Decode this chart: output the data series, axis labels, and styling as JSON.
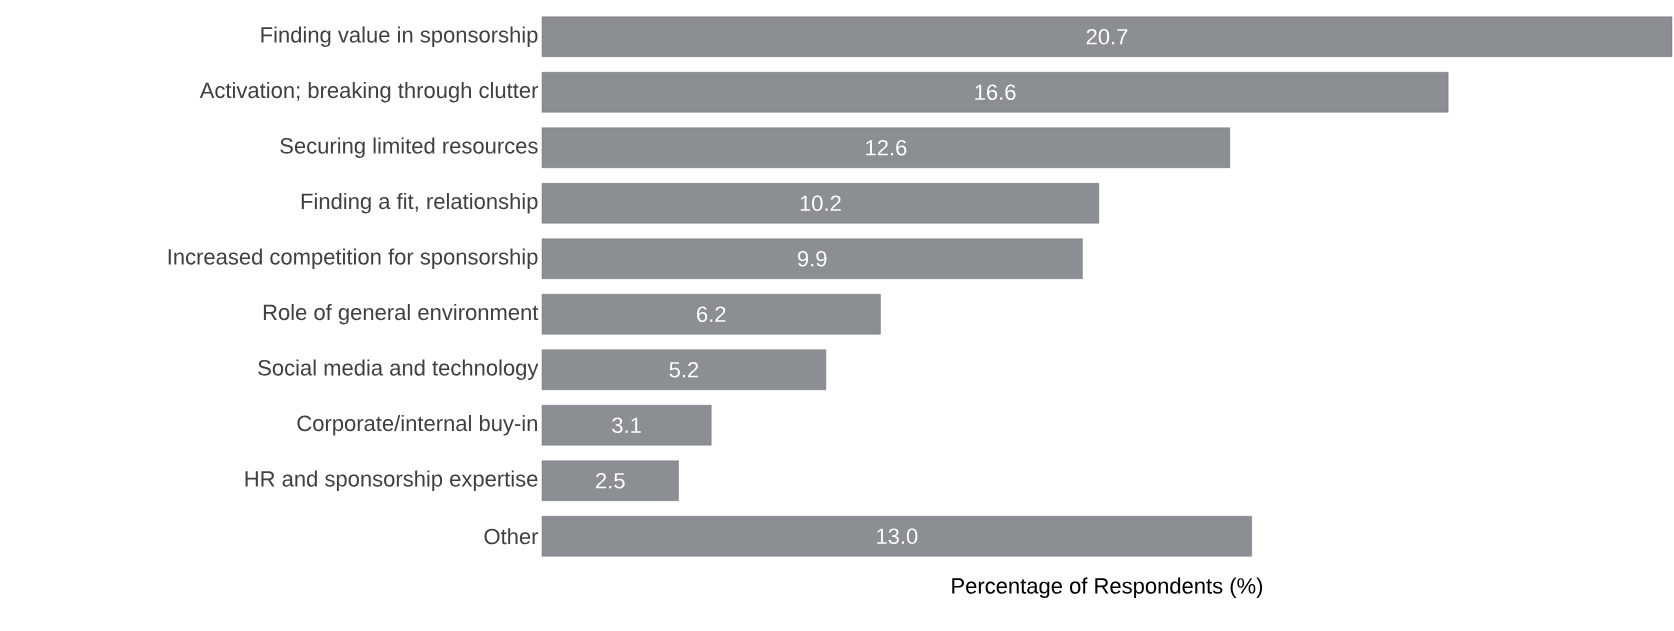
{
  "chart_data": {
    "type": "bar",
    "orientation": "horizontal",
    "xlabel": "Percentage of Respondents (%)",
    "categories": [
      "Finding value in sponsorship",
      "Activation; breaking through clutter",
      "Securing limited resources",
      "Finding a fit, relationship",
      "Increased competition for sponsorship",
      "Role of general environment",
      "Social media and technology",
      "Corporate/internal buy-in",
      "HR and sponsorship expertise",
      "Other"
    ],
    "values": [
      20.7,
      16.6,
      12.6,
      10.2,
      9.9,
      6.2,
      5.2,
      3.1,
      2.5,
      13.0
    ],
    "value_labels": [
      "20.7",
      "16.6",
      "12.6",
      "10.2",
      "9.9",
      "6.2",
      "5.2",
      "3.1",
      "2.5",
      "13.0"
    ],
    "color": "#8b8e93"
  }
}
